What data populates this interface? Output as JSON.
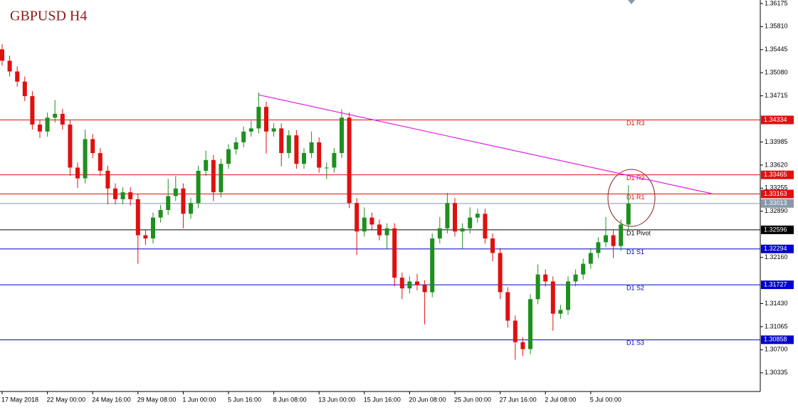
{
  "chart_data": {
    "type": "candlestick",
    "title": "GBPUSD H4",
    "categories": [
      "17 May 2018",
      null,
      null,
      null,
      null,
      null,
      "22 May 00:00",
      null,
      null,
      null,
      null,
      null,
      "24 May 16:00",
      null,
      null,
      null,
      null,
      null,
      "29 May 08:00",
      null,
      null,
      null,
      null,
      null,
      "1 Jun 00:00",
      null,
      null,
      null,
      null,
      null,
      "5 Jun 16:00",
      null,
      null,
      null,
      null,
      null,
      "8 Jun 08:00",
      null,
      null,
      null,
      null,
      null,
      "13 Jun 00:00",
      null,
      null,
      null,
      null,
      null,
      "15 Jun 16:00",
      null,
      null,
      null,
      null,
      null,
      "20 Jun 08:00",
      null,
      null,
      null,
      null,
      null,
      "25 Jun 00:00",
      null,
      null,
      null,
      null,
      null,
      "27 Jun 16:00",
      null,
      null,
      null,
      null,
      null,
      "2 Jul 08:00",
      null,
      null,
      null,
      null,
      null,
      "5 Jul 00:00",
      null,
      null,
      null,
      null,
      null
    ],
    "open": [
      1.3545,
      1.3527,
      1.351,
      1.3494,
      1.3471,
      1.3426,
      1.3415,
      1.3437,
      1.3443,
      1.3426,
      1.3358,
      1.3341,
      1.3403,
      1.3381,
      1.3353,
      1.3325,
      1.3308,
      1.3319,
      1.3308,
      1.3251,
      1.3246,
      1.3279,
      1.3291,
      1.3313,
      1.3325,
      1.3285,
      1.3302,
      1.3353,
      1.337,
      1.3319,
      1.3364,
      1.3387,
      1.3398,
      1.3415,
      1.342,
      1.3454,
      1.3415,
      1.342,
      1.3381,
      1.3409,
      1.3364,
      1.3381,
      1.3398,
      1.3358,
      1.3358,
      1.3381,
      1.3437,
      1.3302,
      1.3257,
      1.3279,
      1.3268,
      1.3251,
      1.3262,
      1.3184,
      1.3167,
      1.3178,
      1.3172,
      1.3161,
      1.3246,
      1.3262,
      1.3302,
      1.3257,
      1.3262,
      1.3279,
      1.3285,
      1.3246,
      1.3223,
      1.3161,
      1.3116,
      1.3082,
      1.3071,
      1.315,
      1.3189,
      1.3178,
      1.3127,
      1.3133,
      1.3178,
      1.3189,
      1.3206,
      1.3223,
      1.324,
      1.3251,
      1.3234,
      1.3268
    ],
    "high": [
      1.3553,
      1.3535,
      1.3518,
      1.3502,
      1.3479,
      1.3434,
      1.3445,
      1.3465,
      1.3451,
      1.3434,
      1.3366,
      1.3418,
      1.3411,
      1.3389,
      1.3361,
      1.3333,
      1.3327,
      1.3327,
      1.3316,
      1.3259,
      1.3287,
      1.3299,
      1.334,
      1.3345,
      1.3333,
      1.331,
      1.3361,
      1.3385,
      1.3378,
      1.3372,
      1.3395,
      1.3406,
      1.3423,
      1.3432,
      1.3477,
      1.3462,
      1.3428,
      1.3428,
      1.3417,
      1.3417,
      1.3389,
      1.3415,
      1.3406,
      1.3366,
      1.3389,
      1.345,
      1.3445,
      1.331,
      1.3295,
      1.3287,
      1.3276,
      1.327,
      1.327,
      1.3192,
      1.3186,
      1.319,
      1.318,
      1.3254,
      1.328,
      1.3318,
      1.331,
      1.327,
      1.3295,
      1.3293,
      1.3293,
      1.3254,
      1.3231,
      1.3169,
      1.3124,
      1.309,
      1.3158,
      1.3205,
      1.3197,
      1.3186,
      1.3141,
      1.3186,
      1.3197,
      1.3214,
      1.3231,
      1.3248,
      1.328,
      1.3259,
      1.3276,
      1.333
    ],
    "low": [
      1.3519,
      1.3502,
      1.3486,
      1.3463,
      1.3418,
      1.3405,
      1.3407,
      1.3429,
      1.3418,
      1.3345,
      1.3326,
      1.3333,
      1.3373,
      1.3345,
      1.33,
      1.33,
      1.33,
      1.3298,
      1.3206,
      1.3236,
      1.3238,
      1.3271,
      1.3283,
      1.3305,
      1.3262,
      1.3277,
      1.3294,
      1.3345,
      1.3305,
      1.3311,
      1.3356,
      1.3379,
      1.339,
      1.3407,
      1.3412,
      1.338,
      1.3407,
      1.336,
      1.3373,
      1.3356,
      1.3356,
      1.3373,
      1.335,
      1.334,
      1.335,
      1.3373,
      1.3294,
      1.322,
      1.3249,
      1.326,
      1.3243,
      1.323,
      1.317,
      1.315,
      1.3159,
      1.3164,
      1.311,
      1.3153,
      1.3238,
      1.3254,
      1.3249,
      1.323,
      1.3254,
      1.3271,
      1.3238,
      1.321,
      1.315,
      1.3105,
      1.3054,
      1.306,
      1.3063,
      1.3142,
      1.317,
      1.31,
      1.3119,
      1.3125,
      1.317,
      1.3181,
      1.3198,
      1.3215,
      1.3232,
      1.3215,
      1.3226,
      1.326
    ],
    "close": [
      1.3527,
      1.351,
      1.3494,
      1.3471,
      1.3426,
      1.3415,
      1.3437,
      1.3443,
      1.3426,
      1.3358,
      1.3341,
      1.3403,
      1.3381,
      1.3353,
      1.3325,
      1.3308,
      1.3319,
      1.3308,
      1.3251,
      1.3246,
      1.3279,
      1.3291,
      1.3313,
      1.3325,
      1.3285,
      1.3302,
      1.3353,
      1.337,
      1.3319,
      1.3364,
      1.3387,
      1.3398,
      1.3415,
      1.342,
      1.3454,
      1.3415,
      1.342,
      1.3381,
      1.3409,
      1.3364,
      1.3381,
      1.3398,
      1.3358,
      1.3358,
      1.3381,
      1.3437,
      1.3302,
      1.3257,
      1.3279,
      1.3268,
      1.3251,
      1.3262,
      1.3184,
      1.3167,
      1.3178,
      1.3172,
      1.3161,
      1.3246,
      1.3262,
      1.3302,
      1.3257,
      1.3262,
      1.3279,
      1.3285,
      1.3246,
      1.3223,
      1.3161,
      1.3116,
      1.3082,
      1.3071,
      1.315,
      1.3189,
      1.3178,
      1.3127,
      1.3133,
      1.3178,
      1.3189,
      1.3206,
      1.3223,
      1.324,
      1.3251,
      1.3234,
      1.3268,
      1.3301
    ],
    "up_color": "#1f8f1f",
    "down_color": "#e01010",
    "ylim": [
      1.3004,
      1.3623
    ],
    "yticks": [
      1.36175,
      {
        "value": 1.3581,
        "label": "1.35810"
      },
      1.35445,
      {
        "value": 1.3508,
        "label": "1.35080"
      },
      1.34715,
      1.33985,
      {
        "value": 1.3362,
        "label": "1.33620"
      },
      1.33255,
      {
        "value": 1.3289,
        "label": "1.32890"
      },
      {
        "value": 1.3216,
        "label": "1.32160"
      },
      {
        "value": 1.3143,
        "label": "1.31430"
      },
      1.31065,
      {
        "value": 1.307,
        "label": "1.30700"
      },
      1.30335
    ],
    "levels": [
      {
        "name": "D1 R3",
        "value": 1.34334,
        "color": "#e01010"
      },
      {
        "name": "D1 R2",
        "value": 1.33465,
        "color": "#e01010"
      },
      {
        "name": "D1 R1",
        "value": 1.33163,
        "color": "#e01010"
      },
      {
        "name": "D1 Pivot",
        "value": 1.32596,
        "color": "#000000"
      },
      {
        "name": "D1 S1",
        "value": 1.32294,
        "color": "#0000cc"
      },
      {
        "name": "D1 S2",
        "value": 1.31727,
        "color": "#0000cc"
      },
      {
        "name": "D1 S3",
        "value": 1.30858,
        "color": "#0000cc"
      }
    ],
    "current_price": {
      "value": 1.33013,
      "color": "#8899aa"
    },
    "trendline": {
      "color": "#e020e0",
      "points": [
        [
          34,
          1.3473
        ],
        [
          94,
          1.3317
        ]
      ]
    }
  }
}
